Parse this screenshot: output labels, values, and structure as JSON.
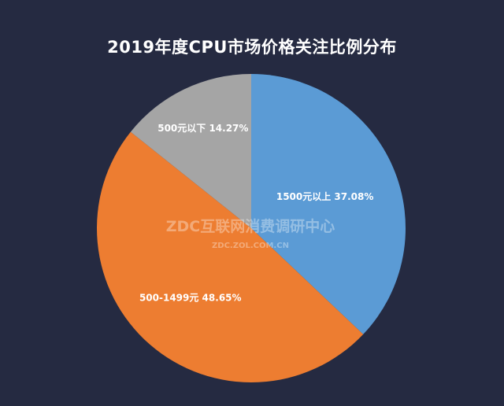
{
  "chart_data": {
    "type": "pie",
    "title": "2019年度CPU市场价格关注比例分布",
    "slices": [
      {
        "label": "1500元以上",
        "value": 37.08,
        "display": "1500元以上 37.08%",
        "color": "#5b9bd5"
      },
      {
        "label": "500-1499元",
        "value": 48.65,
        "display": "500-1499元 48.65%",
        "color": "#ed7d31"
      },
      {
        "label": "500元以下",
        "value": 14.27,
        "display": "500元以下 14.27%",
        "color": "#a5a5a5"
      }
    ],
    "start": "top",
    "direction": "clockwise",
    "legend": "none"
  },
  "watermark": {
    "main": "ZDC互联网消费调研中心",
    "sub": "ZDC.ZOL.COM.CN"
  },
  "colors": {
    "background": "#252a41"
  }
}
